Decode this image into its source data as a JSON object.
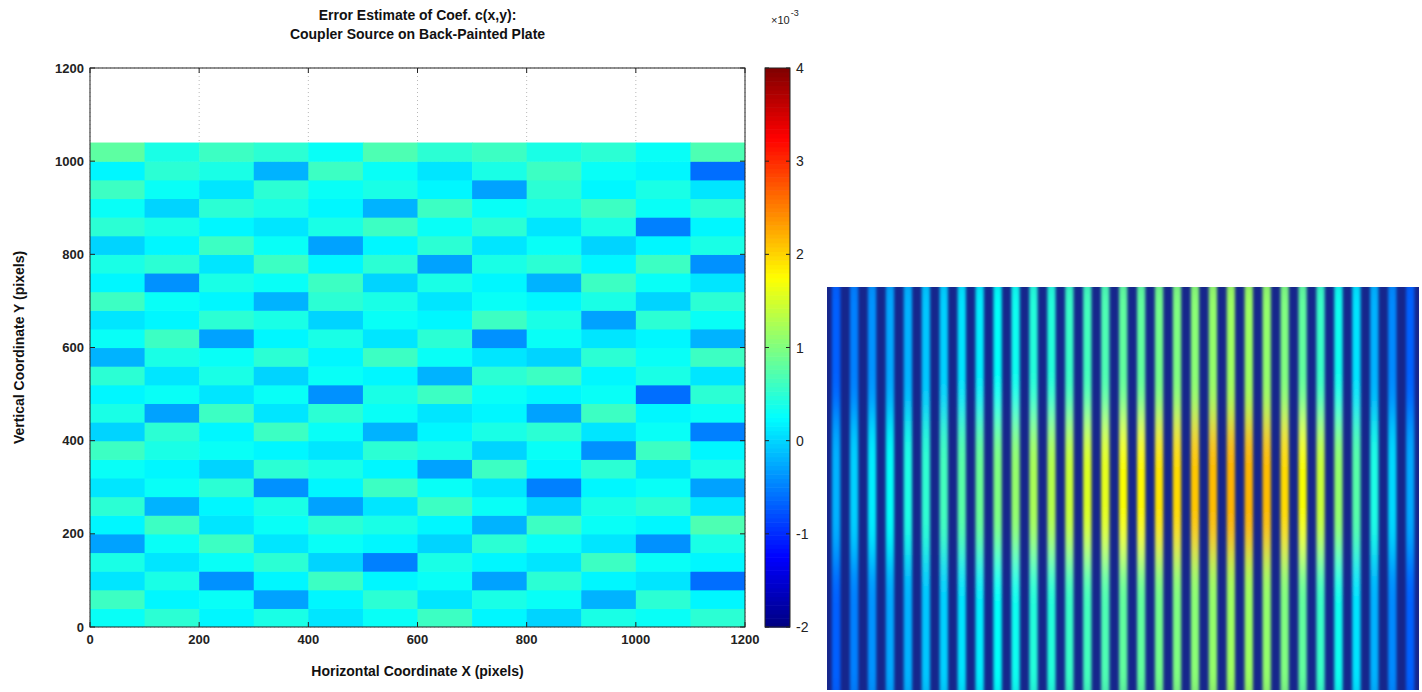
{
  "chart_data": [
    {
      "type": "heatmap",
      "title": "Error Estimate of Coef. c(x,y):",
      "subtitle": "Coupler Source on Back-Painted Plate",
      "x_label": "Horizontal Coordinate X (pixels)",
      "y_label": "Vertical Coordinate Y (pixels)",
      "xlim": [
        0,
        1200
      ],
      "xticks": [
        0,
        200,
        400,
        600,
        800,
        1000,
        1200
      ],
      "ylim": [
        0,
        1200
      ],
      "yticks": [
        0,
        200,
        400,
        600,
        800,
        1000,
        1200
      ],
      "grid": true,
      "cell_x_edges": [
        0,
        100,
        200,
        300,
        400,
        500,
        600,
        700,
        800,
        900,
        1000,
        1100,
        1200
      ],
      "cell_y_edges": [
        0,
        40,
        80,
        120,
        160,
        200,
        240,
        280,
        320,
        360,
        400,
        440,
        480,
        520,
        560,
        600,
        640,
        680,
        720,
        760,
        800,
        840,
        880,
        920,
        960,
        1000,
        1040
      ],
      "cells": [
        [
          0.3,
          0.5,
          0.2,
          0.4,
          0.1,
          0.3,
          0.6,
          0.2,
          0.0,
          0.4,
          0.3,
          0.5
        ],
        [
          0.6,
          0.2,
          0.3,
          -0.3,
          0.2,
          0.5,
          0.1,
          0.4,
          0.3,
          -0.2,
          0.5,
          0.2
        ],
        [
          0.1,
          0.4,
          -0.4,
          0.2,
          0.6,
          0.2,
          0.3,
          -0.3,
          0.5,
          0.2,
          0.1,
          -0.6
        ],
        [
          0.4,
          0.1,
          0.3,
          0.5,
          0.0,
          -0.5,
          0.4,
          0.2,
          0.1,
          0.6,
          0.3,
          0.2
        ],
        [
          -0.3,
          0.3,
          0.6,
          0.1,
          0.3,
          0.2,
          0.0,
          0.5,
          0.3,
          0.1,
          -0.4,
          0.4
        ],
        [
          0.2,
          0.6,
          0.1,
          0.3,
          0.5,
          0.4,
          0.2,
          -0.2,
          0.6,
          0.3,
          0.2,
          0.7
        ],
        [
          0.5,
          -0.2,
          0.2,
          0.4,
          -0.3,
          0.1,
          0.6,
          0.3,
          0.0,
          0.4,
          0.5,
          0.1
        ],
        [
          0.1,
          0.3,
          0.5,
          -0.4,
          0.2,
          0.6,
          0.3,
          0.1,
          -0.5,
          0.2,
          0.3,
          -0.3
        ],
        [
          0.3,
          0.2,
          0.0,
          0.5,
          0.4,
          0.2,
          -0.3,
          0.6,
          0.2,
          0.5,
          0.1,
          0.4
        ],
        [
          0.6,
          0.4,
          0.3,
          0.2,
          0.1,
          0.5,
          0.4,
          0.0,
          0.3,
          -0.4,
          0.6,
          0.2
        ],
        [
          0.0,
          0.5,
          0.2,
          0.6,
          0.3,
          -0.2,
          0.2,
          0.4,
          0.5,
          0.1,
          0.3,
          -0.5
        ],
        [
          0.4,
          -0.3,
          0.6,
          0.1,
          0.5,
          0.3,
          0.1,
          0.2,
          -0.3,
          0.6,
          0.2,
          0.3
        ],
        [
          0.2,
          0.3,
          0.1,
          0.3,
          -0.4,
          0.4,
          0.6,
          0.3,
          0.2,
          0.3,
          -0.6,
          0.5
        ],
        [
          0.5,
          0.1,
          0.4,
          0.0,
          0.3,
          0.2,
          -0.2,
          0.5,
          0.6,
          0.2,
          0.4,
          0.1
        ],
        [
          -0.2,
          0.4,
          0.3,
          0.5,
          0.2,
          0.6,
          0.3,
          0.1,
          0.0,
          0.5,
          0.3,
          0.6
        ],
        [
          0.3,
          0.6,
          -0.3,
          0.2,
          0.4,
          0.1,
          0.5,
          -0.4,
          0.3,
          0.1,
          0.2,
          -0.2
        ],
        [
          0.1,
          0.2,
          0.5,
          0.4,
          0.0,
          0.3,
          0.2,
          0.6,
          0.4,
          -0.3,
          0.5,
          0.3
        ],
        [
          0.6,
          0.3,
          0.2,
          -0.2,
          0.5,
          0.4,
          0.1,
          0.3,
          0.2,
          0.4,
          0.0,
          0.5
        ],
        [
          0.2,
          -0.4,
          0.4,
          0.3,
          0.6,
          0.0,
          0.4,
          0.2,
          -0.2,
          0.6,
          0.3,
          0.1
        ],
        [
          0.4,
          0.5,
          0.1,
          0.6,
          0.2,
          0.5,
          -0.3,
          0.4,
          0.5,
          0.2,
          0.6,
          -0.4
        ],
        [
          0.0,
          0.2,
          0.6,
          0.3,
          -0.3,
          0.2,
          0.5,
          0.1,
          0.3,
          0.0,
          0.2,
          0.4
        ],
        [
          0.5,
          0.4,
          0.2,
          0.1,
          0.4,
          0.6,
          0.3,
          0.5,
          0.1,
          0.4,
          -0.5,
          0.2
        ],
        [
          0.3,
          0.0,
          0.5,
          0.4,
          0.2,
          -0.2,
          0.6,
          0.3,
          0.4,
          0.6,
          0.3,
          0.5
        ],
        [
          0.6,
          0.3,
          0.1,
          0.5,
          0.3,
          0.4,
          0.2,
          -0.3,
          0.5,
          0.2,
          0.4,
          0.1
        ],
        [
          0.2,
          0.5,
          0.4,
          -0.2,
          0.6,
          0.3,
          0.1,
          0.4,
          0.6,
          0.3,
          0.2,
          -0.6
        ],
        [
          0.8,
          0.4,
          0.6,
          0.5,
          0.3,
          0.7,
          0.5,
          0.6,
          0.4,
          0.5,
          0.3,
          0.7
        ]
      ],
      "colorbar_range": [
        -2,
        4
      ],
      "colorbar_ticks": [
        -2,
        -1,
        0,
        1,
        2,
        3,
        4
      ],
      "colorbar_multiplier": "×10",
      "colorbar_exponent": "-3"
    },
    {
      "type": "image",
      "color_range": [
        0,
        1
      ],
      "cells": [
        [
          0.22,
          0.25,
          0.27,
          0.29,
          0.3,
          0.32,
          0.33,
          0.35,
          0.36,
          0.38,
          0.39,
          0.41,
          0.41,
          0.43,
          0.44,
          0.45,
          0.47,
          0.47,
          0.49,
          0.5,
          0.51,
          0.52,
          0.53,
          0.53,
          0.52,
          0.5,
          0.47,
          0.43,
          0.39,
          0.35,
          0.3,
          0.26,
          0.22
        ],
        [
          0.3,
          0.33,
          0.36,
          0.38,
          0.4,
          0.42,
          0.44,
          0.46,
          0.48,
          0.5,
          0.52,
          0.54,
          0.55,
          0.57,
          0.59,
          0.6,
          0.62,
          0.63,
          0.65,
          0.66,
          0.68,
          0.69,
          0.7,
          0.7,
          0.69,
          0.66,
          0.62,
          0.57,
          0.52,
          0.46,
          0.4,
          0.34,
          0.29
        ],
        [
          0.22,
          0.25,
          0.27,
          0.29,
          0.3,
          0.32,
          0.33,
          0.35,
          0.36,
          0.38,
          0.39,
          0.41,
          0.41,
          0.43,
          0.44,
          0.45,
          0.47,
          0.47,
          0.49,
          0.5,
          0.51,
          0.52,
          0.53,
          0.53,
          0.52,
          0.5,
          0.47,
          0.43,
          0.39,
          0.35,
          0.3,
          0.26,
          0.22
        ]
      ]
    }
  ]
}
